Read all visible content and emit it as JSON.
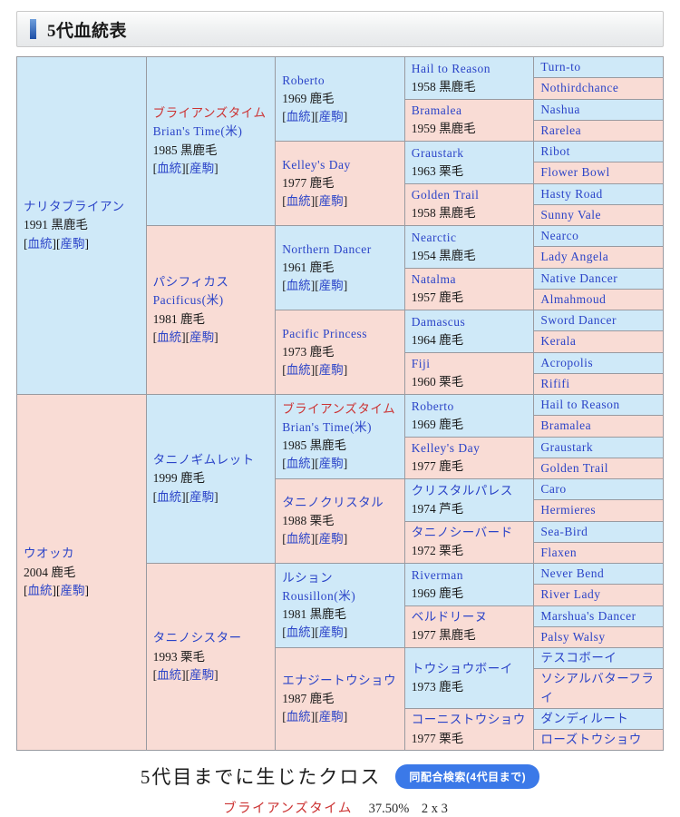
{
  "header": {
    "title": "5代血統表"
  },
  "colors": {
    "sire_bg": "#cfe9f8",
    "dam_bg": "#f9dcd5",
    "link": "#2b44c8",
    "cross_red": "#cc3333",
    "button_bg": "#3b79e8",
    "accent_bar": "#1d4fa6"
  },
  "table": {
    "labels": {
      "pedigree": "血統",
      "offspring": "産駒"
    },
    "cells": [
      {
        "r": 0,
        "c": 0,
        "rs": 16,
        "bg": "b",
        "main": "ナリタブライアン",
        "info": "1991 黒鹿毛",
        "links": true
      },
      {
        "r": 0,
        "c": 1,
        "rs": 8,
        "bg": "b",
        "red": "ブライアンズタイム",
        "main": "Brian's Time(米)",
        "info": "1985 黒鹿毛",
        "links": true
      },
      {
        "r": 0,
        "c": 2,
        "rs": 4,
        "bg": "b",
        "main": "Roberto",
        "info": "1969 鹿毛",
        "links": true
      },
      {
        "r": 0,
        "c": 3,
        "rs": 2,
        "bg": "b",
        "main": "Hail to Reason",
        "info": "1958 黒鹿毛"
      },
      {
        "r": 0,
        "c": 4,
        "rs": 1,
        "bg": "b",
        "main": "Turn-to"
      },
      {
        "r": 1,
        "c": 4,
        "rs": 1,
        "bg": "p",
        "main": "Nothirdchance"
      },
      {
        "r": 2,
        "c": 3,
        "rs": 2,
        "bg": "p",
        "main": "Bramalea",
        "info": "1959 黒鹿毛"
      },
      {
        "r": 2,
        "c": 4,
        "rs": 1,
        "bg": "b",
        "main": "Nashua"
      },
      {
        "r": 3,
        "c": 4,
        "rs": 1,
        "bg": "p",
        "main": "Rarelea"
      },
      {
        "r": 4,
        "c": 2,
        "rs": 4,
        "bg": "p",
        "main": "Kelley's Day",
        "info": "1977 鹿毛",
        "links": true
      },
      {
        "r": 4,
        "c": 3,
        "rs": 2,
        "bg": "b",
        "main": "Graustark",
        "info": "1963 栗毛"
      },
      {
        "r": 4,
        "c": 4,
        "rs": 1,
        "bg": "b",
        "main": "Ribot"
      },
      {
        "r": 5,
        "c": 4,
        "rs": 1,
        "bg": "p",
        "main": "Flower Bowl"
      },
      {
        "r": 6,
        "c": 3,
        "rs": 2,
        "bg": "p",
        "main": "Golden Trail",
        "info": "1958 黒鹿毛"
      },
      {
        "r": 6,
        "c": 4,
        "rs": 1,
        "bg": "b",
        "main": "Hasty Road"
      },
      {
        "r": 7,
        "c": 4,
        "rs": 1,
        "bg": "p",
        "main": "Sunny Vale"
      },
      {
        "r": 8,
        "c": 1,
        "rs": 8,
        "bg": "p",
        "main": "パシフィカス",
        "sub": "Pacificus(米)",
        "info": "1981 鹿毛",
        "links": true
      },
      {
        "r": 8,
        "c": 2,
        "rs": 4,
        "bg": "b",
        "main": "Northern Dancer",
        "info": "1961 鹿毛",
        "links": true
      },
      {
        "r": 8,
        "c": 3,
        "rs": 2,
        "bg": "b",
        "main": "Nearctic",
        "info": "1954 黒鹿毛"
      },
      {
        "r": 8,
        "c": 4,
        "rs": 1,
        "bg": "b",
        "main": "Nearco"
      },
      {
        "r": 9,
        "c": 4,
        "rs": 1,
        "bg": "p",
        "main": "Lady Angela"
      },
      {
        "r": 10,
        "c": 3,
        "rs": 2,
        "bg": "p",
        "main": "Natalma",
        "info": "1957 鹿毛"
      },
      {
        "r": 10,
        "c": 4,
        "rs": 1,
        "bg": "b",
        "main": "Native Dancer"
      },
      {
        "r": 11,
        "c": 4,
        "rs": 1,
        "bg": "p",
        "main": "Almahmoud"
      },
      {
        "r": 12,
        "c": 2,
        "rs": 4,
        "bg": "p",
        "main": "Pacific Princess",
        "info": "1973 鹿毛",
        "links": true
      },
      {
        "r": 12,
        "c": 3,
        "rs": 2,
        "bg": "b",
        "main": "Damascus",
        "info": "1964 鹿毛"
      },
      {
        "r": 12,
        "c": 4,
        "rs": 1,
        "bg": "b",
        "main": "Sword Dancer"
      },
      {
        "r": 13,
        "c": 4,
        "rs": 1,
        "bg": "p",
        "main": "Kerala"
      },
      {
        "r": 14,
        "c": 3,
        "rs": 2,
        "bg": "p",
        "main": "Fiji",
        "info": "1960 栗毛"
      },
      {
        "r": 14,
        "c": 4,
        "rs": 1,
        "bg": "b",
        "main": "Acropolis"
      },
      {
        "r": 15,
        "c": 4,
        "rs": 1,
        "bg": "p",
        "main": "Rififi"
      },
      {
        "r": 16,
        "c": 0,
        "rs": 16,
        "bg": "p",
        "main": "ウオッカ",
        "info": "2004 鹿毛",
        "links": true
      },
      {
        "r": 16,
        "c": 1,
        "rs": 8,
        "bg": "b",
        "main": "タニノギムレット",
        "info": "1999 鹿毛",
        "links": true
      },
      {
        "r": 16,
        "c": 2,
        "rs": 4,
        "bg": "b",
        "red": "ブライアンズタイム",
        "main": "Brian's Time(米)",
        "info": "1985 黒鹿毛",
        "links": true
      },
      {
        "r": 16,
        "c": 3,
        "rs": 2,
        "bg": "b",
        "main": "Roberto",
        "info": "1969 鹿毛"
      },
      {
        "r": 16,
        "c": 4,
        "rs": 1,
        "bg": "b",
        "main": "Hail to Reason"
      },
      {
        "r": 17,
        "c": 4,
        "rs": 1,
        "bg": "p",
        "main": "Bramalea"
      },
      {
        "r": 18,
        "c": 3,
        "rs": 2,
        "bg": "p",
        "main": "Kelley's Day",
        "info": "1977 鹿毛"
      },
      {
        "r": 18,
        "c": 4,
        "rs": 1,
        "bg": "b",
        "main": "Graustark"
      },
      {
        "r": 19,
        "c": 4,
        "rs": 1,
        "bg": "p",
        "main": "Golden Trail"
      },
      {
        "r": 20,
        "c": 2,
        "rs": 4,
        "bg": "p",
        "main": "タニノクリスタル",
        "info": "1988 栗毛",
        "links": true
      },
      {
        "r": 20,
        "c": 3,
        "rs": 2,
        "bg": "b",
        "main": "クリスタルパレス",
        "info": "1974 芦毛"
      },
      {
        "r": 20,
        "c": 4,
        "rs": 1,
        "bg": "b",
        "main": "Caro"
      },
      {
        "r": 21,
        "c": 4,
        "rs": 1,
        "bg": "p",
        "main": "Hermieres"
      },
      {
        "r": 22,
        "c": 3,
        "rs": 2,
        "bg": "p",
        "main": "タニノシーバード",
        "info": "1972 栗毛"
      },
      {
        "r": 22,
        "c": 4,
        "rs": 1,
        "bg": "b",
        "main": "Sea-Bird"
      },
      {
        "r": 23,
        "c": 4,
        "rs": 1,
        "bg": "p",
        "main": "Flaxen"
      },
      {
        "r": 24,
        "c": 1,
        "rs": 8,
        "bg": "p",
        "main": "タニノシスター",
        "info": "1993 栗毛",
        "links": true
      },
      {
        "r": 24,
        "c": 2,
        "rs": 4,
        "bg": "b",
        "main": "ルション",
        "sub": "Rousillon(米)",
        "info": "1981 黒鹿毛",
        "links": true
      },
      {
        "r": 24,
        "c": 3,
        "rs": 2,
        "bg": "b",
        "main": "Riverman",
        "info": "1969 鹿毛"
      },
      {
        "r": 24,
        "c": 4,
        "rs": 1,
        "bg": "b",
        "main": "Never Bend"
      },
      {
        "r": 25,
        "c": 4,
        "rs": 1,
        "bg": "p",
        "main": "River Lady"
      },
      {
        "r": 26,
        "c": 3,
        "rs": 2,
        "bg": "p",
        "main": "ベルドリーヌ",
        "info": "1977 黒鹿毛"
      },
      {
        "r": 26,
        "c": 4,
        "rs": 1,
        "bg": "b",
        "main": "Marshua's Dancer"
      },
      {
        "r": 27,
        "c": 4,
        "rs": 1,
        "bg": "p",
        "main": "Palsy Walsy"
      },
      {
        "r": 28,
        "c": 2,
        "rs": 4,
        "bg": "p",
        "main": "エナジートウショウ",
        "info": "1987 鹿毛",
        "links": true
      },
      {
        "r": 28,
        "c": 3,
        "rs": 2,
        "bg": "b",
        "main": "トウショウボーイ",
        "info": "1973 鹿毛"
      },
      {
        "r": 28,
        "c": 4,
        "rs": 1,
        "bg": "b",
        "main": "テスコボーイ"
      },
      {
        "r": 29,
        "c": 4,
        "rs": 1,
        "bg": "p",
        "main": "ソシアルバターフライ"
      },
      {
        "r": 30,
        "c": 3,
        "rs": 2,
        "bg": "p",
        "main": "コーニストウショウ",
        "info": "1977 栗毛"
      },
      {
        "r": 30,
        "c": 4,
        "rs": 1,
        "bg": "b",
        "main": "ダンディルート"
      },
      {
        "r": 31,
        "c": 4,
        "rs": 1,
        "bg": "p",
        "main": "ローズトウショウ"
      }
    ]
  },
  "footer": {
    "heading": "5代目までに生じたクロス",
    "button_label": "同配合検索(4代目まで)",
    "cross": {
      "name": "ブライアンズタイム",
      "percent": "37.50%",
      "pattern": "2 x 3"
    }
  }
}
